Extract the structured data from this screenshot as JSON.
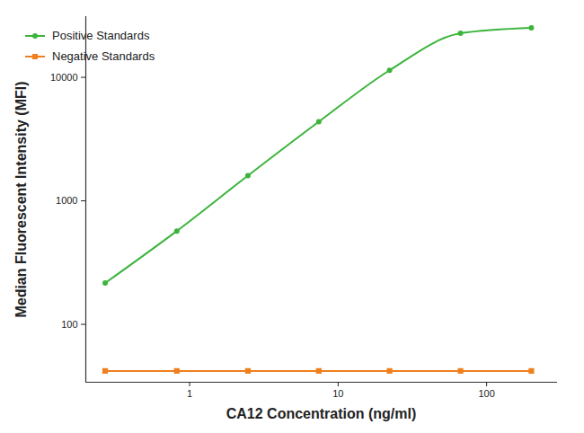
{
  "chart_data": {
    "type": "line",
    "x_label": "CA12 Concentration (ng/ml)",
    "y_label": "Median Fluorescent Intensity (MFI)",
    "log": true,
    "legend": "top-left",
    "xlim": [
      0.2,
      300
    ],
    "ylim": [
      34,
      31000
    ],
    "xticks": [
      1,
      10,
      100
    ],
    "yticks": [
      100,
      1000,
      10000
    ],
    "series": [
      {
        "name": "Positive Standards",
        "color": "#3cb43c",
        "marker": "circle",
        "x": [
          0.27,
          0.82,
          2.47,
          7.41,
          22.2,
          66.7,
          200
        ],
        "values": [
          216,
          570,
          1600,
          4370,
          11400,
          22700,
          25100
        ]
      },
      {
        "name": "Negative Standards",
        "color": "#f07f1e",
        "marker": "square",
        "x": [
          0.27,
          0.82,
          2.47,
          7.41,
          22.2,
          66.7,
          200
        ],
        "values": [
          42,
          42,
          42,
          42,
          42,
          42,
          42
        ]
      }
    ]
  }
}
